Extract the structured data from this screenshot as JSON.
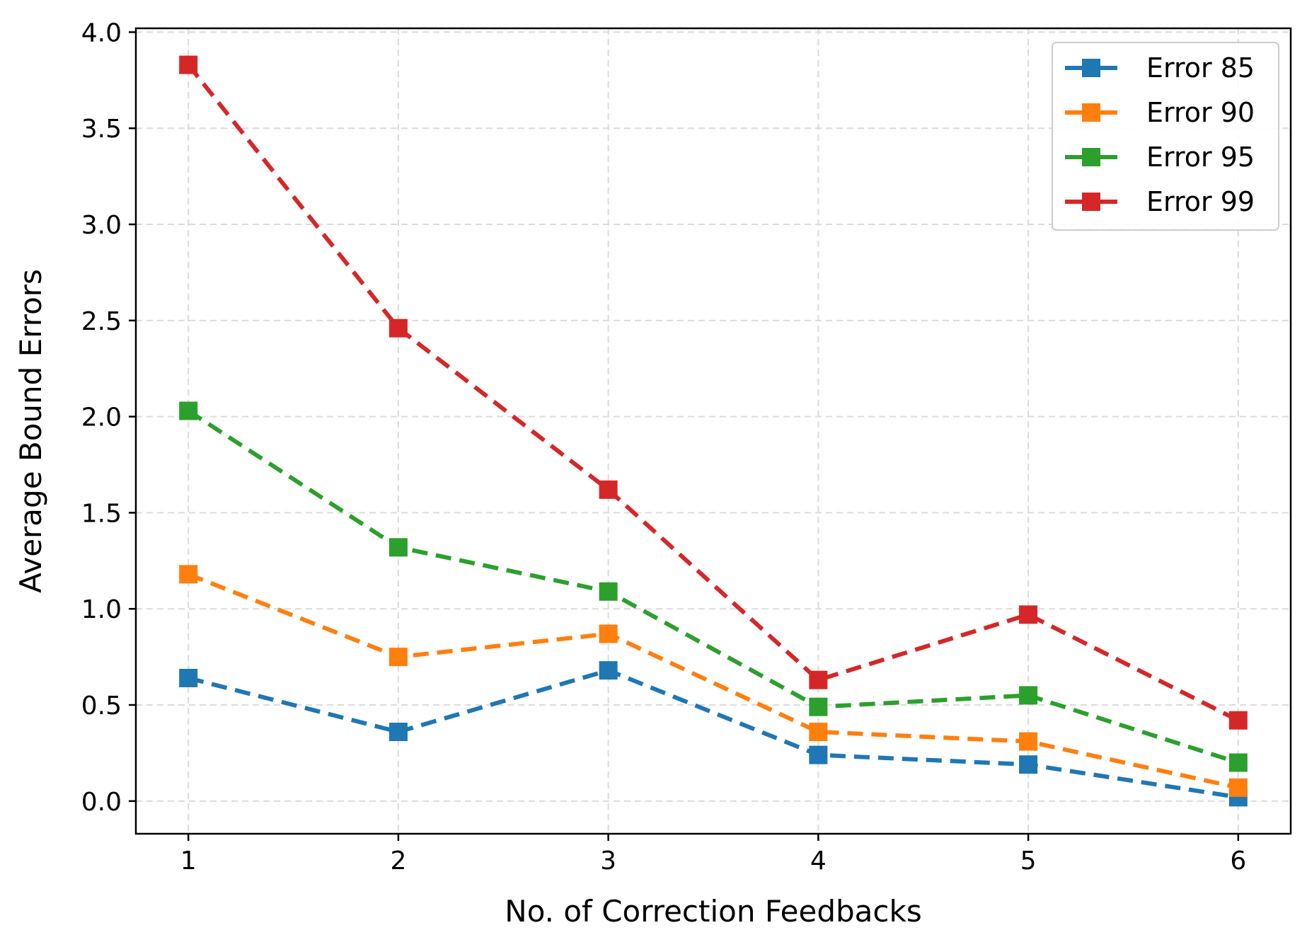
{
  "chart_data": {
    "type": "line",
    "xlabel": "No. of Correction Feedbacks",
    "ylabel": "Average Bound Errors",
    "x": [
      1,
      2,
      3,
      4,
      5,
      6
    ],
    "xticks": [
      "1",
      "2",
      "3",
      "4",
      "5",
      "6"
    ],
    "yticks": [
      "0.0",
      "0.5",
      "1.0",
      "1.5",
      "2.0",
      "2.5",
      "3.0",
      "3.5",
      "4.0"
    ],
    "xlim": [
      0.75,
      6.25
    ],
    "ylim": [
      -0.17,
      4.02
    ],
    "grid": true,
    "legend_position": "top-right",
    "marker": "square",
    "line_style": "dashed",
    "series": [
      {
        "name": "Error 85",
        "color": "#1f77b4",
        "values": [
          0.64,
          0.36,
          0.68,
          0.24,
          0.19,
          0.02
        ]
      },
      {
        "name": "Error 90",
        "color": "#ff7f0e",
        "values": [
          1.18,
          0.75,
          0.87,
          0.36,
          0.31,
          0.07
        ]
      },
      {
        "name": "Error 95",
        "color": "#2ca02c",
        "values": [
          2.03,
          1.32,
          1.09,
          0.49,
          0.55,
          0.2
        ]
      },
      {
        "name": "Error 99",
        "color": "#d62728",
        "values": [
          3.83,
          2.46,
          1.62,
          0.63,
          0.97,
          0.42
        ]
      }
    ]
  }
}
